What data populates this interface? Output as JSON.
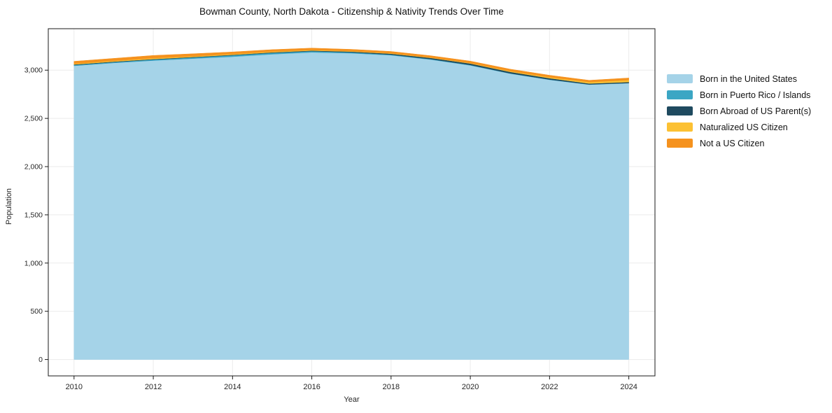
{
  "chart_data": {
    "type": "area",
    "stacked": true,
    "title": "Bowman County, North Dakota - Citizenship & Nativity Trends Over Time",
    "xlabel": "Year",
    "ylabel": "Population",
    "x": [
      2010,
      2011,
      2012,
      2013,
      2014,
      2015,
      2016,
      2017,
      2018,
      2019,
      2020,
      2021,
      2022,
      2023,
      2024
    ],
    "series": [
      {
        "name": "Born in the United States",
        "color": "#a5d3e8",
        "values": [
          3045,
          3075,
          3100,
          3120,
          3140,
          3165,
          3185,
          3175,
          3155,
          3110,
          3050,
          2965,
          2900,
          2850,
          2865
        ]
      },
      {
        "name": "Born in Puerto Rico / Islands",
        "color": "#3ba6c4",
        "values": [
          8,
          8,
          10,
          12,
          14,
          14,
          12,
          10,
          6,
          5,
          4,
          3,
          3,
          2,
          2
        ]
      },
      {
        "name": "Born Abroad of US Parent(s)",
        "color": "#1f4a5f",
        "values": [
          6,
          6,
          5,
          5,
          5,
          6,
          6,
          8,
          10,
          12,
          15,
          15,
          14,
          10,
          10
        ]
      },
      {
        "name": "Naturalized US Citizen",
        "color": "#fcc133",
        "values": [
          8,
          8,
          10,
          8,
          8,
          8,
          6,
          5,
          5,
          5,
          5,
          8,
          10,
          15,
          20
        ]
      },
      {
        "name": "Not a US Citizen",
        "color": "#f5921e",
        "values": [
          25,
          25,
          28,
          25,
          22,
          20,
          20,
          18,
          18,
          18,
          20,
          20,
          20,
          18,
          22
        ]
      }
    ],
    "xlim": [
      2009.35,
      2024.66
    ],
    "ylim": [
      -170,
      3430
    ],
    "x_ticks": [
      2010,
      2012,
      2014,
      2016,
      2018,
      2020,
      2022,
      2024
    ],
    "x_tick_labels": [
      "2010",
      "2012",
      "2014",
      "2016",
      "2018",
      "2020",
      "2022",
      "2024"
    ],
    "y_ticks": [
      0,
      500,
      1000,
      1500,
      2000,
      2500,
      3000
    ],
    "y_tick_labels": [
      "0",
      "500",
      "1,000",
      "1,500",
      "2,000",
      "2,500",
      "3,000"
    ],
    "grid": true,
    "grid_color": "#ebebeb",
    "axis_color": "#1a1a1a",
    "tick_label_color": "#262626",
    "background": "#ffffff",
    "legend_position": "right of plot"
  }
}
